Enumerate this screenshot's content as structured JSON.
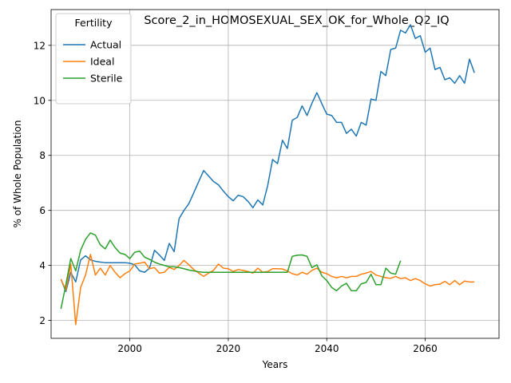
{
  "chart_data": {
    "type": "line",
    "title": "Score_2_in_HOMOSEXUAL_SEX_OK_for_Whole_Q2_IQ",
    "xlabel": "Years",
    "ylabel": "% of Whole Population",
    "xlim": [
      1984,
      2075
    ],
    "ylim": [
      1.35,
      13.3
    ],
    "xticks": [
      2000,
      2020,
      2040,
      2060
    ],
    "yticks": [
      2,
      4,
      6,
      8,
      10,
      12
    ],
    "grid": true,
    "legend": {
      "title": "Fertility",
      "placement": "top-left"
    },
    "series": [
      {
        "name": "Actual",
        "color": "#1f77b4",
        "x": [
          1986,
          1987,
          1988,
          1989,
          1990,
          1991,
          1992,
          1993,
          1994,
          1995,
          1996,
          1997,
          1998,
          1999,
          2000,
          2001,
          2002,
          2003,
          2004,
          2005,
          2006,
          2007,
          2008,
          2009,
          2010,
          2011,
          2012,
          2013,
          2014,
          2015,
          2016,
          2017,
          2018,
          2019,
          2020,
          2021,
          2022,
          2023,
          2024,
          2025,
          2026,
          2027,
          2028,
          2029,
          2030,
          2031,
          2032,
          2033,
          2034,
          2035,
          2036,
          2037,
          2038,
          2039,
          2040,
          2041,
          2042,
          2043,
          2044,
          2045,
          2046,
          2047,
          2048,
          2049,
          2050,
          2051,
          2052,
          2053,
          2054,
          2055,
          2056,
          2057,
          2058,
          2059,
          2060,
          2061,
          2062,
          2063,
          2064,
          2065,
          2066,
          2067,
          2068,
          2069,
          2070
        ],
        "values": [
          3.5,
          3.05,
          3.75,
          3.4,
          4.2,
          4.35,
          4.2,
          4.15,
          4.12,
          4.1,
          4.1,
          4.1,
          4.1,
          4.1,
          4.08,
          4.02,
          3.8,
          3.75,
          3.9,
          4.55,
          4.38,
          4.18,
          4.8,
          4.5,
          5.7,
          6.0,
          6.25,
          6.65,
          7.05,
          7.45,
          7.25,
          7.05,
          6.93,
          6.7,
          6.5,
          6.35,
          6.55,
          6.5,
          6.33,
          6.1,
          6.38,
          6.2,
          6.9,
          7.85,
          7.7,
          8.55,
          8.25,
          9.28,
          9.38,
          9.8,
          9.45,
          9.9,
          10.28,
          9.88,
          9.5,
          9.45,
          9.2,
          9.2,
          8.8,
          8.95,
          8.7,
          9.2,
          9.1,
          10.05,
          10.0,
          11.05,
          10.9,
          11.85,
          11.9,
          12.55,
          12.45,
          12.75,
          12.25,
          12.35,
          11.75,
          11.9,
          11.12,
          11.2,
          10.75,
          10.82,
          10.62,
          10.9,
          10.62,
          11.5,
          11.0
        ]
      },
      {
        "name": "Ideal",
        "color": "#ff7f0e",
        "x": [
          1986,
          1987,
          1988,
          1989,
          1990,
          1991,
          1992,
          1993,
          1994,
          1995,
          1996,
          1997,
          1998,
          1999,
          2000,
          2001,
          2002,
          2003,
          2004,
          2005,
          2006,
          2007,
          2008,
          2009,
          2010,
          2011,
          2012,
          2013,
          2014,
          2015,
          2016,
          2017,
          2018,
          2019,
          2020,
          2021,
          2022,
          2023,
          2024,
          2025,
          2026,
          2027,
          2028,
          2029,
          2030,
          2031,
          2032,
          2033,
          2034,
          2035,
          2036,
          2037,
          2038,
          2039,
          2040,
          2041,
          2042,
          2043,
          2044,
          2045,
          2046,
          2047,
          2048,
          2049,
          2050,
          2051,
          2052,
          2053,
          2054,
          2055,
          2056,
          2057,
          2058,
          2059,
          2060,
          2061,
          2062,
          2063,
          2064,
          2065,
          2066,
          2067,
          2068,
          2069,
          2070
        ],
        "values": [
          3.5,
          3.1,
          4.05,
          1.85,
          3.2,
          3.65,
          4.4,
          3.65,
          3.9,
          3.65,
          4.0,
          3.75,
          3.55,
          3.7,
          3.8,
          4.05,
          4.08,
          4.12,
          3.88,
          3.92,
          3.72,
          3.75,
          3.93,
          3.85,
          4.0,
          4.18,
          4.02,
          3.85,
          3.72,
          3.6,
          3.72,
          3.82,
          4.05,
          3.9,
          3.88,
          3.78,
          3.85,
          3.82,
          3.78,
          3.72,
          3.9,
          3.75,
          3.78,
          3.88,
          3.88,
          3.87,
          3.8,
          3.7,
          3.65,
          3.75,
          3.68,
          3.82,
          3.9,
          3.75,
          3.7,
          3.6,
          3.55,
          3.6,
          3.55,
          3.6,
          3.6,
          3.68,
          3.72,
          3.78,
          3.65,
          3.6,
          3.55,
          3.53,
          3.6,
          3.52,
          3.55,
          3.45,
          3.52,
          3.45,
          3.33,
          3.25,
          3.3,
          3.32,
          3.42,
          3.3,
          3.45,
          3.3,
          3.43,
          3.4,
          3.4
        ]
      },
      {
        "name": "Sterile",
        "color": "#2ca02c",
        "x": [
          1986,
          1987,
          1988,
          1989,
          1990,
          1991,
          1992,
          1993,
          1994,
          1995,
          1996,
          1997,
          1998,
          1999,
          2000,
          2001,
          2002,
          2003,
          2004,
          2005,
          2006,
          2007,
          2008,
          2009,
          2010,
          2011,
          2012,
          2013,
          2014,
          2015,
          2016,
          2017,
          2018,
          2019,
          2020,
          2021,
          2022,
          2023,
          2024,
          2025,
          2026,
          2027,
          2028,
          2029,
          2030,
          2031,
          2032,
          2033,
          2034,
          2035,
          2036,
          2037,
          2038,
          2039,
          2040,
          2041,
          2042,
          2043,
          2044,
          2045,
          2046,
          2047,
          2048,
          2049,
          2050,
          2051,
          2052,
          2053,
          2054,
          2055
        ],
        "values": [
          2.42,
          3.3,
          4.25,
          3.8,
          4.55,
          4.95,
          5.18,
          5.1,
          4.75,
          4.6,
          4.92,
          4.65,
          4.45,
          4.4,
          4.25,
          4.48,
          4.52,
          4.3,
          4.22,
          4.12,
          4.05,
          4.0,
          3.95,
          3.95,
          3.92,
          3.88,
          3.83,
          3.8,
          3.77,
          3.75,
          3.75,
          3.75,
          3.75,
          3.75,
          3.75,
          3.75,
          3.75,
          3.75,
          3.75,
          3.75,
          3.75,
          3.75,
          3.75,
          3.75,
          3.75,
          3.75,
          3.75,
          4.33,
          4.37,
          4.38,
          4.33,
          3.92,
          4.02,
          3.62,
          3.45,
          3.2,
          3.08,
          3.25,
          3.35,
          3.08,
          3.08,
          3.33,
          3.38,
          3.68,
          3.3,
          3.3,
          3.9,
          3.72,
          3.68,
          4.17
        ]
      }
    ]
  }
}
